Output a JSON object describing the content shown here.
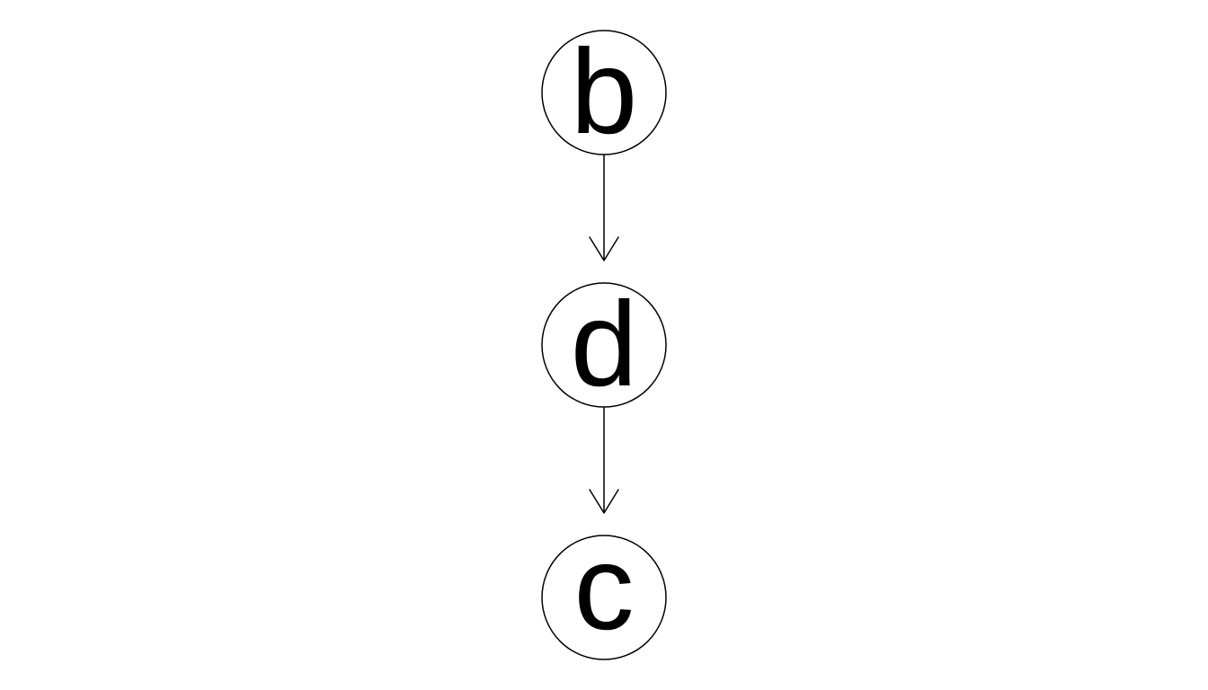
{
  "diagram": {
    "type": "directed-graph",
    "nodes": [
      {
        "id": "b",
        "label": "b"
      },
      {
        "id": "d",
        "label": "d"
      },
      {
        "id": "c",
        "label": "c"
      }
    ],
    "edges": [
      {
        "from": "b",
        "to": "d"
      },
      {
        "from": "d",
        "to": "c"
      }
    ],
    "colors": {
      "stroke": "#000000",
      "fill": "#ffffff",
      "background": "#ffffff"
    }
  }
}
